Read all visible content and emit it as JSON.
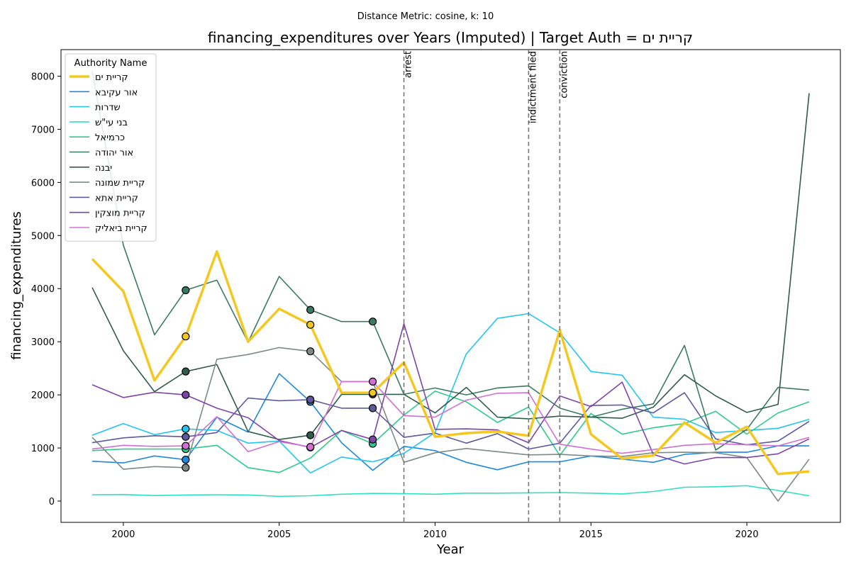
{
  "chart_data": {
    "type": "line",
    "suptitle": "Distance Metric: cosine, k: 10",
    "title": "financing_expenditures over Years (Imputed) | Target Auth = קריית ים",
    "xlabel": "Year",
    "ylabel": "financing_expenditures",
    "xlim": [
      1998,
      2023
    ],
    "ylim": [
      -400,
      8500
    ],
    "xticks": [
      2000,
      2005,
      2010,
      2015,
      2020
    ],
    "yticks": [
      0,
      1000,
      2000,
      3000,
      4000,
      5000,
      6000,
      7000,
      8000
    ],
    "legend": {
      "title": "Authority Name",
      "position": "top-left"
    },
    "events": [
      {
        "x": 2009,
        "label": "arrest"
      },
      {
        "x": 2013,
        "label": "indictment filed"
      },
      {
        "x": 2014,
        "label": "conviction"
      }
    ],
    "x": [
      1999,
      2000,
      2001,
      2002,
      2003,
      2004,
      2005,
      2006,
      2007,
      2008,
      2009,
      2010,
      2011,
      2012,
      2013,
      2014,
      2015,
      2016,
      2017,
      2018,
      2019,
      2020,
      2021,
      2022
    ],
    "series": [
      {
        "name": "קריית ים",
        "color": "#f4c820",
        "width": 3.5,
        "target": true,
        "values": [
          4560,
          3950,
          2270,
          3100,
          4700,
          3000,
          3620,
          3320,
          2040,
          2040,
          2610,
          1210,
          1280,
          1310,
          1230,
          3220,
          1260,
          800,
          860,
          1480,
          1100,
          1400,
          510,
          560
        ],
        "imputed": [
          2002,
          2006,
          2008
        ]
      },
      {
        "name": "אור עקיבא",
        "color": "#1f88e0",
        "width": 1.6,
        "values": [
          750,
          720,
          850,
          780,
          1580,
          1300,
          2400,
          1870,
          1100,
          580,
          1030,
          950,
          730,
          590,
          740,
          740,
          850,
          790,
          730,
          880,
          920,
          920,
          1040,
          1040
        ],
        "imputed": [
          2002,
          2006
        ]
      },
      {
        "name": "שדרות",
        "color": "#22c6ee",
        "width": 1.6,
        "values": [
          1240,
          1460,
          1250,
          1360,
          1330,
          1090,
          1130,
          530,
          830,
          740,
          900,
          1290,
          2770,
          3440,
          3530,
          3170,
          2440,
          2370,
          1580,
          1540,
          1290,
          1330,
          1370,
          1540
        ],
        "imputed": [
          2002
        ]
      },
      {
        "name": "בני עי\"ש",
        "color": "#2ee0c2",
        "width": 1.6,
        "values": [
          120,
          125,
          105,
          115,
          120,
          115,
          90,
          100,
          130,
          145,
          140,
          130,
          150,
          150,
          155,
          160,
          150,
          135,
          180,
          260,
          270,
          290,
          200,
          100
        ],
        "imputed": []
      },
      {
        "name": "כרמיאל",
        "color": "#2ecc8c",
        "width": 1.6,
        "values": [
          950,
          980,
          980,
          980,
          1050,
          630,
          540,
          810,
          1330,
          1080,
          1620,
          2070,
          1870,
          1480,
          1770,
          860,
          1650,
          1260,
          1380,
          1460,
          1690,
          1260,
          1660,
          1870
        ],
        "imputed": [
          2002,
          2008
        ]
      },
      {
        "name": "אור יהודה",
        "color": "#3a7a62",
        "width": 1.6,
        "values": [
          8100,
          4820,
          3130,
          3970,
          4160,
          2990,
          4230,
          3600,
          3380,
          3380,
          2010,
          2130,
          2000,
          2130,
          2170,
          1750,
          1580,
          1730,
          1830,
          2930,
          960,
          1350,
          2140,
          2090
        ],
        "imputed": [
          2002,
          2006,
          2008
        ]
      },
      {
        "name": "יבנה",
        "color": "#2f5c4c",
        "width": 1.6,
        "values": [
          4020,
          2830,
          2060,
          2440,
          2570,
          1310,
          1160,
          1240,
          2010,
          2010,
          2010,
          1660,
          2140,
          1580,
          1550,
          1600,
          1580,
          1560,
          1770,
          2380,
          1980,
          1670,
          1820,
          7680
        ],
        "imputed": [
          2002,
          2006,
          2008
        ]
      },
      {
        "name": "קריית שמונה",
        "color": "#7e8a86",
        "width": 1.6,
        "values": [
          1200,
          600,
          650,
          630,
          2670,
          2760,
          2890,
          2820,
          2250,
          2250,
          730,
          910,
          990,
          930,
          870,
          880,
          850,
          840,
          910,
          920,
          910,
          820,
          0,
          790
        ],
        "imputed": [
          2002,
          2006
        ]
      },
      {
        "name": "קריית אתא",
        "color": "#5e5a9e",
        "width": 1.6,
        "values": [
          1100,
          1190,
          1230,
          1210,
          1290,
          1940,
          1890,
          1910,
          1750,
          1750,
          1200,
          1280,
          1090,
          1270,
          980,
          1090,
          1800,
          1810,
          1660,
          2040,
          1170,
          1060,
          1130,
          1500
        ],
        "imputed": [
          2002,
          2006,
          2008
        ]
      },
      {
        "name": "קריית מוצקין",
        "color": "#7e44aa",
        "width": 1.6,
        "values": [
          2190,
          1950,
          2050,
          2000,
          1750,
          1570,
          1140,
          1010,
          1330,
          1160,
          3340,
          1350,
          1360,
          1340,
          1100,
          1980,
          1780,
          2240,
          880,
          700,
          820,
          820,
          890,
          1170
        ],
        "imputed": [
          2002,
          2006,
          2008
        ]
      },
      {
        "name": "קריית ביאליק",
        "color": "#d070d0",
        "width": 1.6,
        "values": [
          980,
          1050,
          1030,
          1040,
          1590,
          930,
          1120,
          1020,
          2250,
          2250,
          1610,
          1580,
          1900,
          2030,
          2040,
          1070,
          980,
          900,
          970,
          1050,
          1080,
          1060,
          1040,
          1200
        ],
        "imputed": [
          2002,
          2006,
          2008
        ]
      }
    ]
  }
}
